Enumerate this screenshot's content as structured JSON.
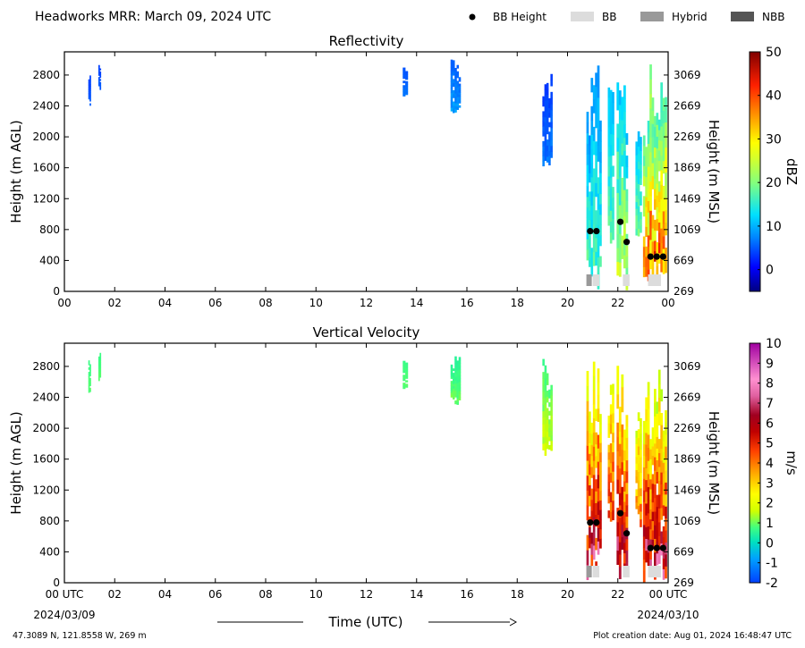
{
  "header": {
    "title": "Headworks MRR:  March 09, 2024 UTC",
    "legend": [
      {
        "label": "BB Height",
        "kind": "dot",
        "color": "#000000"
      },
      {
        "label": "BB",
        "kind": "swatch",
        "color": "#dcdcdc"
      },
      {
        "label": "Hybrid",
        "kind": "swatch",
        "color": "#999999"
      },
      {
        "label": "NBB",
        "kind": "swatch",
        "color": "#555555"
      }
    ]
  },
  "chart_data": [
    {
      "type": "heatmap",
      "title": "Reflectivity",
      "ylabel": "Height (m AGL)",
      "y2label": "Height (m MSL)",
      "x_ticks": [
        "00",
        "02",
        "04",
        "06",
        "08",
        "10",
        "12",
        "14",
        "16",
        "18",
        "20",
        "22",
        "00"
      ],
      "y_ticks": [
        0,
        400,
        800,
        1200,
        1600,
        2000,
        2400,
        2800
      ],
      "y2_ticks": [
        269,
        669,
        1069,
        1469,
        1869,
        2269,
        2669,
        3069
      ],
      "xlim": [
        0,
        24
      ],
      "ylim": [
        0,
        3100
      ],
      "colorbar": {
        "label": "dBZ",
        "min": -5,
        "max": 50,
        "ticks": [
          0,
          10,
          20,
          30,
          40,
          50
        ],
        "stops": [
          [
            "#000080",
            0
          ],
          [
            "#0000ff",
            0.1
          ],
          [
            "#0080ff",
            0.22
          ],
          [
            "#00e0ff",
            0.32
          ],
          [
            "#80ff80",
            0.45
          ],
          [
            "#d0ff30",
            0.55
          ],
          [
            "#ffff00",
            0.62
          ],
          [
            "#ff9000",
            0.74
          ],
          [
            "#ff2000",
            0.86
          ],
          [
            "#800000",
            1
          ]
        ]
      },
      "bb_height": [
        {
          "t": 20.9,
          "h": 780
        },
        {
          "t": 21.15,
          "h": 780
        },
        {
          "t": 22.1,
          "h": 900
        },
        {
          "t": 22.35,
          "h": 640
        },
        {
          "t": 23.3,
          "h": 450
        },
        {
          "t": 23.55,
          "h": 450
        },
        {
          "t": 23.8,
          "h": 450
        }
      ],
      "bb_classes": [
        {
          "t0": 20.75,
          "t1": 21.0,
          "kind": "Hybrid"
        },
        {
          "t0": 21.0,
          "t1": 21.3,
          "kind": "BB"
        },
        {
          "t0": 22.2,
          "t1": 22.5,
          "kind": "BB"
        },
        {
          "t0": 23.2,
          "t1": 23.75,
          "kind": "BB"
        }
      ],
      "precip": [
        {
          "t0": 0.95,
          "t1": 1.05,
          "h0": 2400,
          "h1": 2900,
          "v0": 3,
          "v1": 6
        },
        {
          "t0": 1.35,
          "t1": 1.45,
          "h0": 2600,
          "h1": 3000,
          "v0": 3,
          "v1": 6
        },
        {
          "t0": 13.45,
          "t1": 13.65,
          "h0": 2500,
          "h1": 3000,
          "v0": 4,
          "v1": 7
        },
        {
          "t0": 15.35,
          "t1": 15.75,
          "h0": 2300,
          "h1": 3000,
          "v0": 4,
          "v1": 10
        },
        {
          "t0": 19.0,
          "t1": 19.4,
          "h0": 1600,
          "h1": 2900,
          "v0": 2,
          "v1": 8
        },
        {
          "t0": 20.75,
          "t1": 21.35,
          "h0": 0,
          "h1": 3000,
          "v0": 5,
          "v1": 20
        },
        {
          "t0": 21.6,
          "t1": 21.85,
          "h0": 600,
          "h1": 2700,
          "v0": 8,
          "v1": 20
        },
        {
          "t0": 21.95,
          "t1": 22.4,
          "h0": 0,
          "h1": 3000,
          "v0": 6,
          "v1": 28
        },
        {
          "t0": 22.7,
          "t1": 22.95,
          "h0": 700,
          "h1": 2500,
          "v0": 8,
          "v1": 22
        },
        {
          "t0": 23.0,
          "t1": 23.95,
          "h0": 0,
          "h1": 3000,
          "v0": 8,
          "v1": 46
        }
      ]
    },
    {
      "type": "heatmap",
      "title": "Vertical Velocity",
      "ylabel": "Height (m AGL)",
      "y2label": "Height (m MSL)",
      "x_ticks": [
        "00 UTC",
        "02",
        "04",
        "06",
        "08",
        "10",
        "12",
        "14",
        "16",
        "18",
        "20",
        "22",
        "00 UTC"
      ],
      "x_sublabels": {
        "first": "2024/03/09",
        "last": "2024/03/10"
      },
      "xlabel": "Time (UTC)",
      "y_ticks": [
        0,
        400,
        800,
        1200,
        1600,
        2000,
        2400,
        2800
      ],
      "y2_ticks": [
        269,
        669,
        1069,
        1469,
        1869,
        2269,
        2669,
        3069
      ],
      "xlim": [
        0,
        24
      ],
      "ylim": [
        0,
        3100
      ],
      "colorbar": {
        "label": "m/s",
        "min": -2,
        "max": 10,
        "ticks": [
          -2,
          -1,
          0,
          1,
          2,
          3,
          4,
          5,
          6,
          7,
          8,
          9,
          10
        ],
        "stops": [
          [
            "#0040ff",
            0
          ],
          [
            "#00a0ff",
            0.1
          ],
          [
            "#00e0c0",
            0.17
          ],
          [
            "#40ff80",
            0.23
          ],
          [
            "#d0ff00",
            0.3
          ],
          [
            "#ffff00",
            0.37
          ],
          [
            "#ffb000",
            0.45
          ],
          [
            "#ff4000",
            0.55
          ],
          [
            "#c00000",
            0.63
          ],
          [
            "#a00020",
            0.7
          ],
          [
            "#e060a0",
            0.78
          ],
          [
            "#ff90d0",
            0.85
          ],
          [
            "#a000a0",
            1
          ]
        ]
      },
      "bb_height": [
        {
          "t": 20.9,
          "h": 780
        },
        {
          "t": 21.15,
          "h": 780
        },
        {
          "t": 22.1,
          "h": 900
        },
        {
          "t": 22.35,
          "h": 640
        },
        {
          "t": 23.3,
          "h": 450
        },
        {
          "t": 23.55,
          "h": 450
        },
        {
          "t": 23.8,
          "h": 450
        }
      ],
      "bb_classes": [
        {
          "t0": 20.75,
          "t1": 21.0,
          "kind": "Hybrid"
        },
        {
          "t0": 21.0,
          "t1": 21.3,
          "kind": "BB"
        },
        {
          "t0": 22.2,
          "t1": 22.5,
          "kind": "BB"
        },
        {
          "t0": 23.2,
          "t1": 23.75,
          "kind": "BB"
        }
      ],
      "precip": [
        {
          "t0": 0.95,
          "t1": 1.05,
          "h0": 2400,
          "h1": 2900,
          "v0": 0.6,
          "v1": 1
        },
        {
          "t0": 1.35,
          "t1": 1.45,
          "h0": 2600,
          "h1": 3000,
          "v0": 0.6,
          "v1": 1
        },
        {
          "t0": 13.45,
          "t1": 13.65,
          "h0": 2500,
          "h1": 3000,
          "v0": 0.6,
          "v1": 1
        },
        {
          "t0": 15.35,
          "t1": 15.75,
          "h0": 2300,
          "h1": 3000,
          "v0": 0.3,
          "v1": 1.2
        },
        {
          "t0": 19.0,
          "t1": 19.4,
          "h0": 1600,
          "h1": 2900,
          "v0": 0.3,
          "v1": 2
        },
        {
          "t0": 20.75,
          "t1": 21.35,
          "h0": 0,
          "h1": 3000,
          "v0": 0.2,
          "v1": 8
        },
        {
          "t0": 21.6,
          "t1": 21.85,
          "h0": 600,
          "h1": 2700,
          "v0": 1,
          "v1": 6
        },
        {
          "t0": 21.95,
          "t1": 22.4,
          "h0": 0,
          "h1": 3000,
          "v0": 0.5,
          "v1": 8
        },
        {
          "t0": 22.7,
          "t1": 22.95,
          "h0": 700,
          "h1": 2500,
          "v0": 0.5,
          "v1": 5
        },
        {
          "t0": 23.0,
          "t1": 23.95,
          "h0": 0,
          "h1": 3000,
          "v0": 0,
          "v1": 8
        }
      ]
    }
  ],
  "footer": {
    "location": "47.3089 N, 121.8558 W, 269 m",
    "created": "Plot creation date: Aug 01, 2024 16:48:47 UTC"
  }
}
